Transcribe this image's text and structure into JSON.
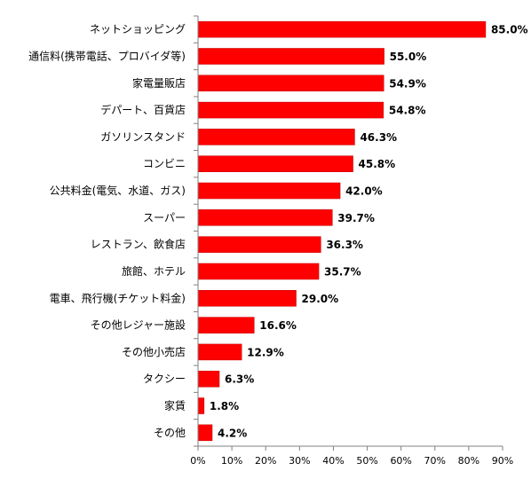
{
  "chart_data": {
    "type": "bar",
    "orientation": "horizontal",
    "categories": [
      "ネットショッピング",
      "通信料(携帯電話、プロバイダ等)",
      "家電量販店",
      "デパート、百貨店",
      "ガソリンスタンド",
      "コンビニ",
      "公共料金(電気、水道、ガス)",
      "スーパー",
      "レストラン、飲食店",
      "旅館、ホテル",
      "電車、飛行機(チケット料金)",
      "その他レジャー施設",
      "その他小売店",
      "タクシー",
      "家賃",
      "その他"
    ],
    "values": [
      85.0,
      55.0,
      54.9,
      54.8,
      46.3,
      45.8,
      42.0,
      39.7,
      36.3,
      35.7,
      29.0,
      16.6,
      12.9,
      6.3,
      1.8,
      4.2
    ],
    "value_labels": [
      "85.0%",
      "55.0%",
      "54.9%",
      "54.8%",
      "46.3%",
      "45.8%",
      "42.0%",
      "39.7%",
      "36.3%",
      "35.7%",
      "29.0%",
      "16.6%",
      "12.9%",
      "6.3%",
      "1.8%",
      "4.2%"
    ],
    "x_ticks": [
      "0%",
      "10%",
      "20%",
      "30%",
      "40%",
      "50%",
      "60%",
      "70%",
      "80%",
      "90%"
    ],
    "xlim": [
      0,
      90
    ],
    "title": "",
    "xlabel": "",
    "ylabel": "",
    "grid": false,
    "legend": "none",
    "bar_color": "#ff0000",
    "bar_stroke_color": "#c00000",
    "axis_color": "#808080"
  }
}
